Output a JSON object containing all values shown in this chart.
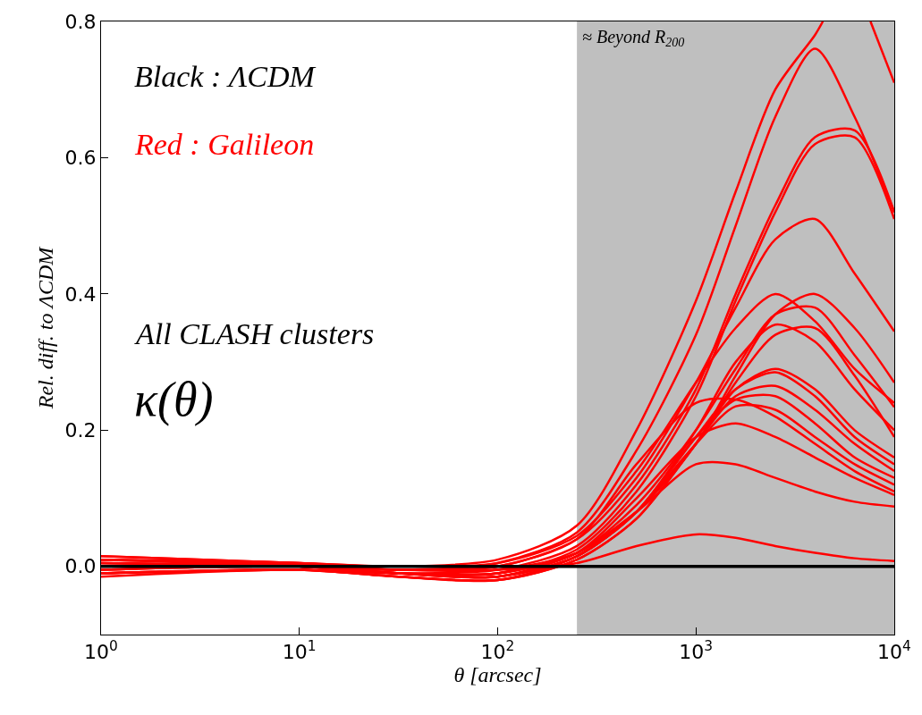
{
  "chart_data": {
    "type": "line",
    "xlabel": "θ [arcsec]",
    "ylabel": "Rel. diff. to ΛCDM",
    "annotations": [
      "Black : ΛCDM",
      "Red : Galileon",
      "All CLASH clusters",
      "κ(θ)"
    ],
    "x": [
      1,
      10,
      31.6,
      100,
      251,
      501,
      1000,
      1585,
      2512,
      3981,
      6310,
      10000
    ],
    "log": "x",
    "grid": false,
    "marker": "none",
    "line_style": "solid",
    "xlim": [
      1,
      10000
    ],
    "ylim": [
      -0.1,
      0.8
    ],
    "xticks": [
      {
        "value": 1,
        "label": "10$^{0}$"
      },
      {
        "value": 10,
        "label": "10$^{1}$"
      },
      {
        "value": 100,
        "label": "10$^{2}$"
      },
      {
        "value": 1000,
        "label": "10$^{3}$"
      },
      {
        "value": 10000,
        "label": "10$^{4}$"
      }
    ],
    "yticks": [
      {
        "value": 0,
        "label": "0.0"
      },
      {
        "value": 0.2,
        "label": "0.2"
      },
      {
        "value": 0.4,
        "label": "0.4"
      },
      {
        "value": 0.6,
        "label": "0.6"
      },
      {
        "value": 0.8,
        "label": "0.8"
      }
    ],
    "bands": [
      {
        "axis": "x",
        "from": 251,
        "to": 10000,
        "label": "≈ Beyond R$_{200}$",
        "color": "#bfbfbf"
      }
    ],
    "series": [
      {
        "color": "#ff0000",
        "x": [
          1,
          10,
          31.6,
          100,
          251,
          501,
          1000,
          1585,
          2512,
          3981,
          4365,
          5500,
          7586,
          10000
        ],
        "values": [
          0.015,
          0.005,
          0,
          0.01,
          0.06,
          0.2,
          0.39,
          0.55,
          0.7,
          0.78,
          0.8,
          null,
          0.8,
          0.71
        ]
      },
      {
        "color": "#ff0000",
        "values": [
          0.01,
          0.003,
          -0.005,
          0.005,
          0.05,
          0.17,
          0.34,
          0.5,
          0.66,
          0.76,
          0.66,
          0.52
        ]
      },
      {
        "color": "#ff0000",
        "values": [
          -0.01,
          -0.005,
          -0.01,
          -0.005,
          0.03,
          0.12,
          0.26,
          0.4,
          0.53,
          0.63,
          0.64,
          0.52
        ]
      },
      {
        "color": "#ff0000",
        "values": [
          -0.005,
          0,
          -0.01,
          -0.01,
          0.025,
          0.11,
          0.25,
          0.39,
          0.52,
          0.62,
          0.63,
          0.51
        ]
      },
      {
        "color": "#ff0000",
        "values": [
          0.01,
          0.002,
          -0.005,
          0,
          0.04,
          0.13,
          0.27,
          0.38,
          0.48,
          0.51,
          0.43,
          0.345
        ]
      },
      {
        "color": "#ff0000",
        "values": [
          -0.005,
          0,
          -0.01,
          -0.015,
          0.02,
          0.08,
          0.18,
          0.28,
          0.37,
          0.4,
          0.35,
          0.27
        ]
      },
      {
        "color": "#ff0000",
        "values": [
          0,
          0,
          -0.01,
          -0.01,
          0.02,
          0.09,
          0.2,
          0.29,
          0.37,
          0.38,
          0.31,
          0.234
        ]
      },
      {
        "color": "#ff0000",
        "values": [
          0.015,
          0.005,
          0,
          0.005,
          0.045,
          0.14,
          0.27,
          0.35,
          0.4,
          0.36,
          0.29,
          0.24
        ]
      },
      {
        "color": "#ff0000",
        "values": [
          -0.01,
          -0.005,
          -0.015,
          -0.02,
          0.015,
          0.08,
          0.2,
          0.3,
          0.355,
          0.33,
          0.26,
          0.2
        ]
      },
      {
        "color": "#ff0000",
        "values": [
          0.005,
          0,
          -0.01,
          -0.01,
          0.02,
          0.08,
          0.18,
          0.27,
          0.34,
          0.35,
          0.28,
          0.19
        ]
      },
      {
        "color": "#ff0000",
        "values": [
          -0.01,
          -0.005,
          -0.015,
          -0.02,
          0.01,
          0.07,
          0.18,
          0.26,
          0.29,
          0.26,
          0.2,
          0.16
        ]
      },
      {
        "color": "#ff0000",
        "values": [
          0.01,
          0,
          -0.01,
          -0.015,
          0.015,
          0.08,
          0.19,
          0.26,
          0.285,
          0.25,
          0.19,
          0.15
        ]
      },
      {
        "color": "#ff0000",
        "values": [
          -0.015,
          -0.005,
          -0.015,
          -0.02,
          0.01,
          0.07,
          0.18,
          0.25,
          0.265,
          0.23,
          0.18,
          0.14
        ]
      },
      {
        "color": "#ff0000",
        "values": [
          0.005,
          0,
          -0.01,
          -0.015,
          0.015,
          0.08,
          0.19,
          0.245,
          0.25,
          0.21,
          0.16,
          0.13
        ]
      },
      {
        "color": "#ff0000",
        "values": [
          -0.005,
          0,
          -0.01,
          -0.015,
          0.015,
          0.08,
          0.18,
          0.235,
          0.23,
          0.19,
          0.15,
          0.12
        ]
      },
      {
        "color": "#ff0000",
        "values": [
          0.01,
          0.005,
          -0.005,
          0,
          0.04,
          0.15,
          0.24,
          0.245,
          0.22,
          0.18,
          0.14,
          0.11
        ]
      },
      {
        "color": "#ff0000",
        "values": [
          -0.01,
          -0.005,
          -0.01,
          -0.01,
          0.02,
          0.1,
          0.19,
          0.21,
          0.19,
          0.16,
          0.13,
          0.105
        ]
      },
      {
        "color": "#ff0000",
        "values": [
          0,
          0,
          -0.005,
          -0.005,
          0.02,
          0.08,
          0.15,
          0.15,
          0.13,
          0.11,
          0.095,
          0.088
        ]
      },
      {
        "color": "#ff0000",
        "values": [
          0.005,
          0,
          -0.005,
          -0.005,
          0.005,
          0.03,
          0.047,
          0.042,
          0.03,
          0.02,
          0.012,
          0.008
        ]
      },
      {
        "color": "#000000",
        "x": [
          1,
          10000
        ],
        "values": [
          0,
          0
        ]
      }
    ]
  }
}
